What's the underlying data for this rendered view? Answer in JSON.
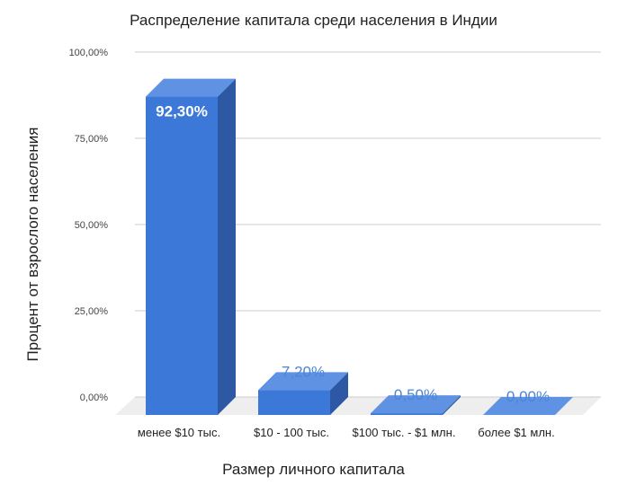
{
  "chart_data": {
    "type": "bar",
    "style": "3d",
    "title": "Распределение капитала среди населения в Индии",
    "xlabel": "Размер личного капитала",
    "ylabel": "Процент от взрослого населения",
    "categories": [
      "менее $10 тыс.",
      "$10  - 100 тыс.",
      "$100 тыс. - $1 млн.",
      "более $1 млн."
    ],
    "values": [
      92.3,
      7.2,
      0.5,
      0.0
    ],
    "data_labels": [
      "92,30%",
      "7,20%",
      "0,50%",
      "0,00%"
    ],
    "ylim": [
      0,
      100
    ],
    "yticks": [
      0,
      25,
      50,
      75,
      100
    ],
    "ytick_labels": [
      "0,00%",
      "25,00%",
      "50,00%",
      "75,00%",
      "100,00%"
    ],
    "grid": true,
    "legend": "none",
    "colors": {
      "bar_front": "#3c78d8",
      "bar_top": "#5f92e3",
      "bar_side": "#2d58a3",
      "floor": "#eeeeee",
      "gridline": "#cccccc",
      "label_inside": "#ffffff",
      "label_outside": "#4a86d8"
    }
  }
}
